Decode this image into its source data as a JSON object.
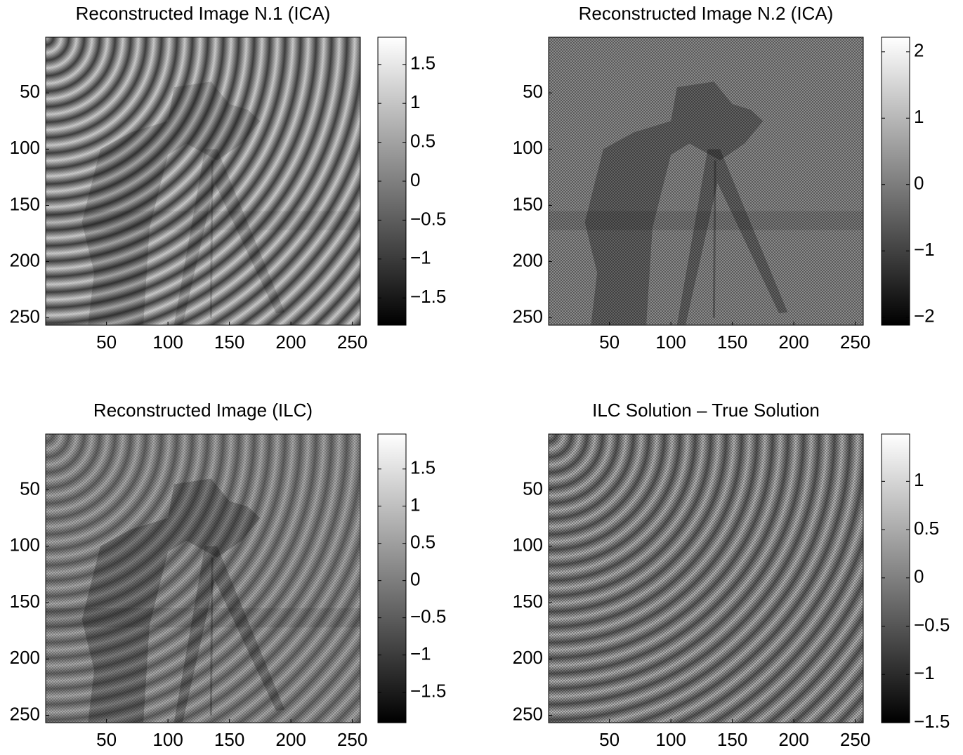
{
  "chart_data": [
    {
      "type": "heatmap",
      "title": "Reconstructed Image N.1 (ICA)",
      "colormap": "gray",
      "xlim": [
        0.5,
        256.5
      ],
      "ylim": [
        0.5,
        256.5
      ],
      "y_reversed": true,
      "xticks": [
        50,
        100,
        150,
        200,
        250
      ],
      "yticks": [
        50,
        100,
        150,
        200,
        250
      ],
      "clim": [
        -1.85,
        1.85
      ],
      "cticks": [
        {
          "value": -1.5,
          "label": "−1.5"
        },
        {
          "value": -1,
          "label": "−1"
        },
        {
          "value": -0.5,
          "label": "−0.5"
        },
        0,
        0.5,
        1,
        1.5
      ]
    },
    {
      "type": "heatmap",
      "title": "Reconstructed Image N.2 (ICA)",
      "colormap": "gray",
      "xlim": [
        0.5,
        256.5
      ],
      "ylim": [
        0.5,
        256.5
      ],
      "y_reversed": true,
      "xticks": [
        50,
        100,
        150,
        200,
        250
      ],
      "yticks": [
        50,
        100,
        150,
        200,
        250
      ],
      "clim": [
        -2.12,
        2.22
      ],
      "cticks": [
        {
          "value": -2,
          "label": "−2"
        },
        {
          "value": -1,
          "label": "−1"
        },
        0,
        1,
        2
      ]
    },
    {
      "type": "heatmap",
      "title": "Reconstructed Image (ILC)",
      "colormap": "gray",
      "xlim": [
        0.5,
        256.5
      ],
      "ylim": [
        0.5,
        256.5
      ],
      "y_reversed": true,
      "xticks": [
        50,
        100,
        150,
        200,
        250
      ],
      "yticks": [
        50,
        100,
        150,
        200,
        250
      ],
      "clim": [
        -1.91,
        1.97
      ],
      "cticks": [
        {
          "value": -1.5,
          "label": "−1.5"
        },
        {
          "value": -1,
          "label": "−1"
        },
        {
          "value": -0.5,
          "label": "−0.5"
        },
        0,
        0.5,
        1,
        1.5
      ]
    },
    {
      "type": "heatmap",
      "title": "ILC Solution – True Solution",
      "colormap": "gray",
      "xlim": [
        0.5,
        256.5
      ],
      "ylim": [
        0.5,
        256.5
      ],
      "y_reversed": true,
      "xticks": [
        50,
        100,
        150,
        200,
        250
      ],
      "yticks": [
        50,
        100,
        150,
        200,
        250
      ],
      "clim": [
        -1.5,
        1.49
      ],
      "cticks": [
        {
          "value": -1.5,
          "label": "−1.5"
        },
        {
          "value": -1,
          "label": "−1"
        },
        {
          "value": -0.5,
          "label": "−0.5"
        },
        0,
        0.5,
        1
      ]
    }
  ]
}
